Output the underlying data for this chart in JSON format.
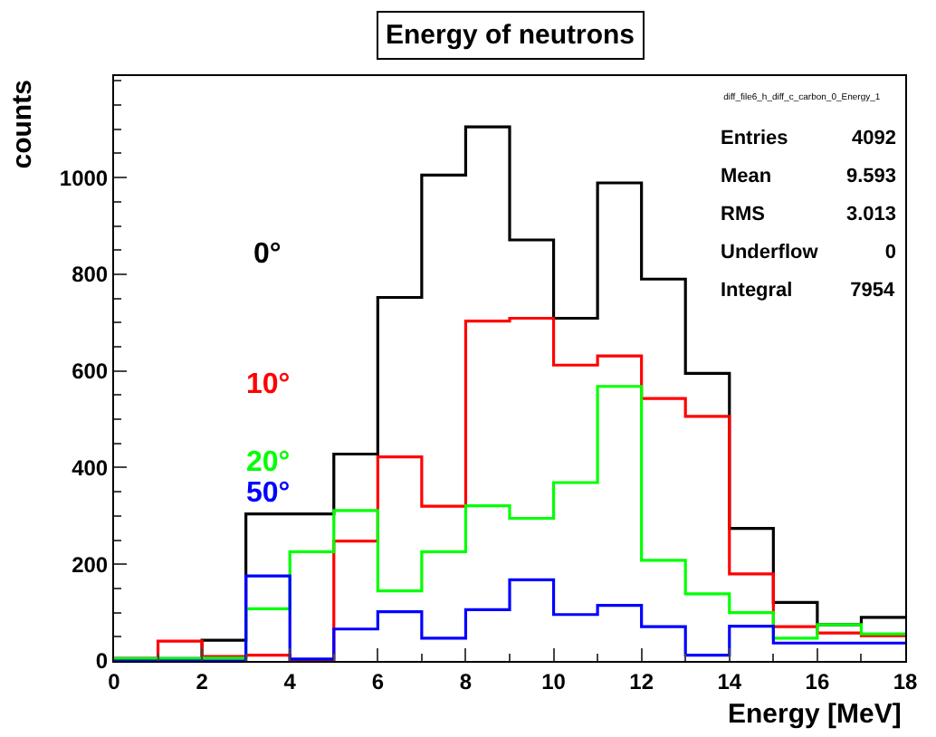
{
  "chart_data": {
    "type": "histogram",
    "title": "Energy of neutrons",
    "xlabel": "Energy [MeV]",
    "ylabel": "counts",
    "bins": [
      0,
      1,
      2,
      3,
      4,
      5,
      6,
      7,
      8,
      9,
      10,
      11,
      12,
      13,
      14,
      15,
      16,
      17,
      18
    ],
    "series": [
      {
        "name": "0°",
        "color": "#000000",
        "values": [
          5,
          5,
          43,
          304,
          304,
          428,
          752,
          1005,
          1105,
          871,
          709,
          989,
          790,
          595,
          274,
          121,
          75,
          90
        ]
      },
      {
        "name": "10°",
        "color": "#ff0000",
        "values": [
          5,
          41,
          9,
          12,
          0,
          248,
          422,
          320,
          703,
          709,
          612,
          631,
          543,
          506,
          180,
          71,
          58,
          52
        ]
      },
      {
        "name": "20°",
        "color": "#00ff00",
        "values": [
          5,
          5,
          6,
          108,
          226,
          311,
          145,
          226,
          321,
          295,
          369,
          568,
          208,
          139,
          100,
          47,
          75,
          56
        ]
      },
      {
        "name": "50°",
        "color": "#0000ff",
        "values": [
          0,
          0,
          0,
          176,
          4,
          66,
          102,
          47,
          106,
          168,
          96,
          115,
          71,
          12,
          72,
          37,
          37,
          37
        ]
      }
    ],
    "xlim": [
      0,
      18
    ],
    "xticks": [
      0,
      2,
      4,
      6,
      8,
      10,
      12,
      14,
      16,
      18
    ],
    "ylim": [
      0,
      1210
    ],
    "yticks": [
      0,
      200,
      400,
      600,
      800,
      1000
    ],
    "annotations": [
      "diff_file6_h_diff_c_carbon_0_Energy_1",
      "Entries",
      "4092",
      "Mean",
      "9.593",
      "RMS",
      "3.013",
      "Underflow",
      "0",
      "Integral",
      "7954"
    ],
    "grid": false,
    "legend": false,
    "marker": "none",
    "line_style": "solid"
  }
}
